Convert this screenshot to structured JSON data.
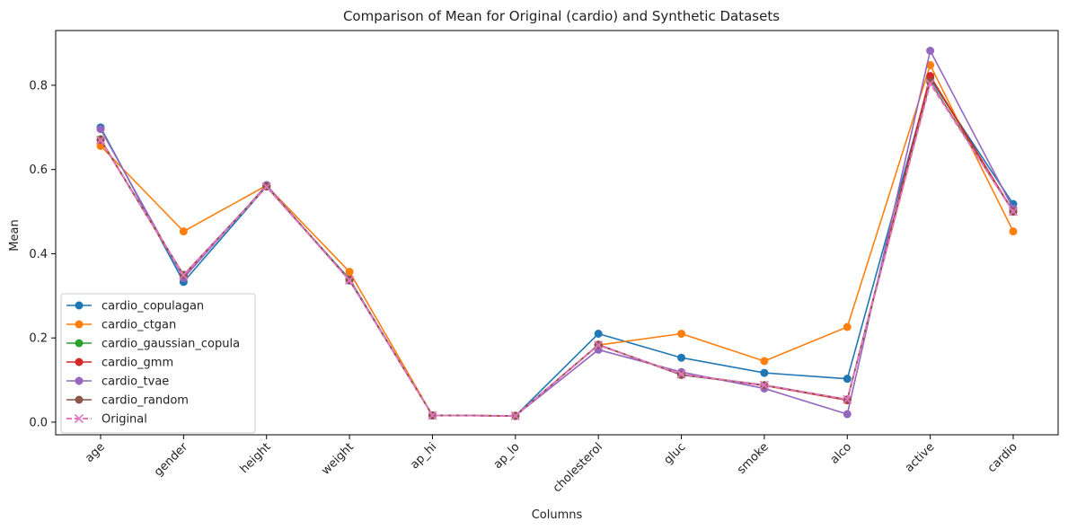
{
  "chart_data": {
    "type": "line",
    "title": "Comparison of Mean for Original (cardio) and Synthetic Datasets",
    "xlabel": "Columns",
    "ylabel": "Mean",
    "categories": [
      "age",
      "gender",
      "height",
      "weight",
      "ap_hi",
      "ap_lo",
      "cholesterol",
      "gluc",
      "smoke",
      "alco",
      "active",
      "cardio"
    ],
    "ylim": [
      -0.03,
      0.93
    ],
    "yticks": [
      0.0,
      0.2,
      0.4,
      0.6,
      0.8
    ],
    "ytick_labels": [
      "0.0",
      "0.2",
      "0.4",
      "0.6",
      "0.8"
    ],
    "legend_position": "lower-left",
    "series": [
      {
        "name": "cardio_copulagan",
        "color": "#1f77b4",
        "marker": "circle",
        "style": "solid",
        "values": [
          0.7,
          0.333,
          0.56,
          0.34,
          0.016,
          0.015,
          0.21,
          0.153,
          0.117,
          0.103,
          0.815,
          0.518
        ]
      },
      {
        "name": "cardio_ctgan",
        "color": "#ff7f0e",
        "marker": "circle",
        "style": "solid",
        "values": [
          0.656,
          0.453,
          0.562,
          0.357,
          0.016,
          0.015,
          0.183,
          0.21,
          0.145,
          0.226,
          0.848,
          0.453
        ]
      },
      {
        "name": "cardio_gaussian_copula",
        "color": "#2ca02c",
        "marker": "circle",
        "style": "solid",
        "values": [
          0.672,
          0.348,
          0.56,
          0.338,
          0.016,
          0.015,
          0.183,
          0.113,
          0.088,
          0.053,
          0.82,
          0.5
        ]
      },
      {
        "name": "cardio_gmm",
        "color": "#d62728",
        "marker": "circle",
        "style": "solid",
        "values": [
          0.67,
          0.347,
          0.56,
          0.338,
          0.016,
          0.015,
          0.184,
          0.113,
          0.087,
          0.052,
          0.822,
          0.5
        ]
      },
      {
        "name": "cardio_tvae",
        "color": "#9467bd",
        "marker": "circle",
        "style": "solid",
        "values": [
          0.696,
          0.342,
          0.563,
          0.336,
          0.016,
          0.015,
          0.172,
          0.119,
          0.08,
          0.019,
          0.882,
          0.507
        ]
      },
      {
        "name": "cardio_random",
        "color": "#8c564b",
        "marker": "circle",
        "style": "solid",
        "values": [
          0.671,
          0.35,
          0.56,
          0.338,
          0.016,
          0.015,
          0.184,
          0.112,
          0.088,
          0.054,
          0.808,
          0.5
        ]
      },
      {
        "name": "Original",
        "color": "#e377c2",
        "marker": "x",
        "style": "dashed",
        "values": [
          0.67,
          0.349,
          0.559,
          0.337,
          0.016,
          0.015,
          0.183,
          0.114,
          0.088,
          0.054,
          0.804,
          0.5
        ]
      }
    ]
  }
}
